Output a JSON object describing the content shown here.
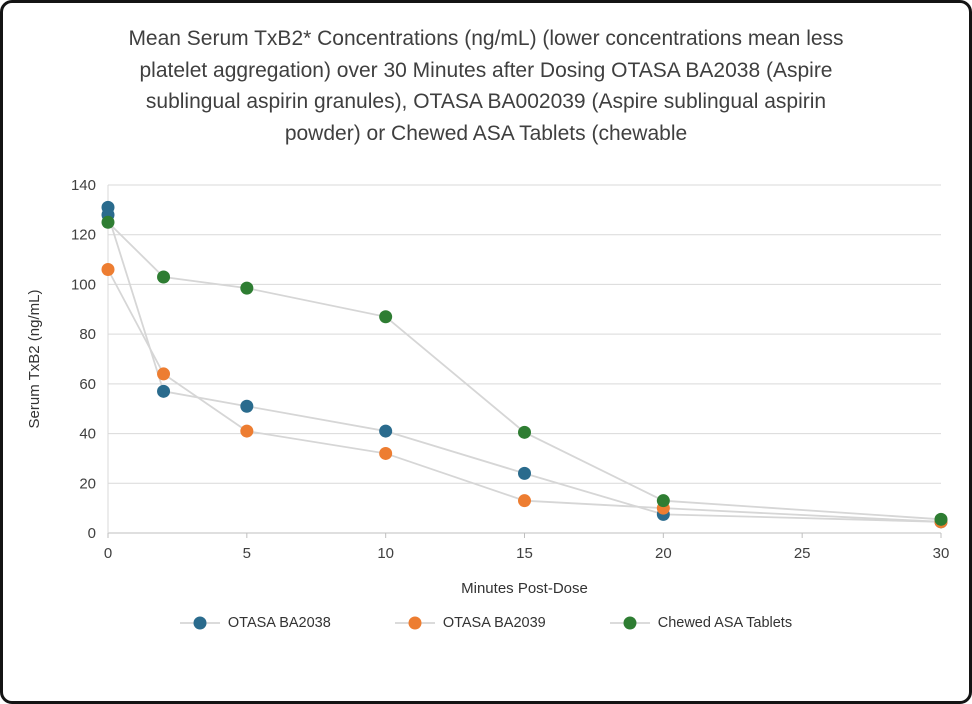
{
  "chart_data": {
    "type": "scatter",
    "title": "Mean Serum TxB2* Concentrations (ng/mL) (lower concentrations mean less platelet aggregation) over 30 Minutes after Dosing OTASA BA2038 (Aspire sublingual aspirin granules), OTASA BA002039 (Aspire sublingual aspirin powder) or Chewed ASA Tablets (chewable",
    "xlabel": "Minutes Post-Dose",
    "ylabel": "Serum TxB2 (ng/mL)",
    "xlim": [
      0,
      30
    ],
    "ylim": [
      0,
      140
    ],
    "x_ticks": [
      0,
      5,
      10,
      15,
      20,
      25,
      30
    ],
    "y_ticks": [
      0,
      20,
      40,
      60,
      80,
      100,
      120,
      140
    ],
    "grid": "horizontal",
    "legend_position": "bottom",
    "colors": {
      "grid": "#d9d9d9",
      "axis": "#bfbfbf",
      "connector": "#d6d6d6",
      "tick_text": "#404040"
    },
    "series": [
      {
        "name": "OTASA BA2038",
        "color": "#2a6b8d",
        "x": [
          0,
          0,
          2,
          5,
          10,
          15,
          20,
          30
        ],
        "y": [
          131,
          128,
          57,
          51,
          41,
          24,
          7.5,
          4.5
        ]
      },
      {
        "name": "OTASA BA2039",
        "color": "#ed7d31",
        "x": [
          0,
          2,
          5,
          10,
          15,
          20,
          30
        ],
        "y": [
          106,
          64,
          41,
          32,
          13,
          10,
          4.5
        ]
      },
      {
        "name": "Chewed ASA Tablets",
        "color": "#2e7d32",
        "x": [
          0,
          2,
          5,
          10,
          15,
          20,
          30
        ],
        "y": [
          125,
          103,
          98.5,
          87,
          40.5,
          13,
          5.5
        ]
      }
    ]
  }
}
